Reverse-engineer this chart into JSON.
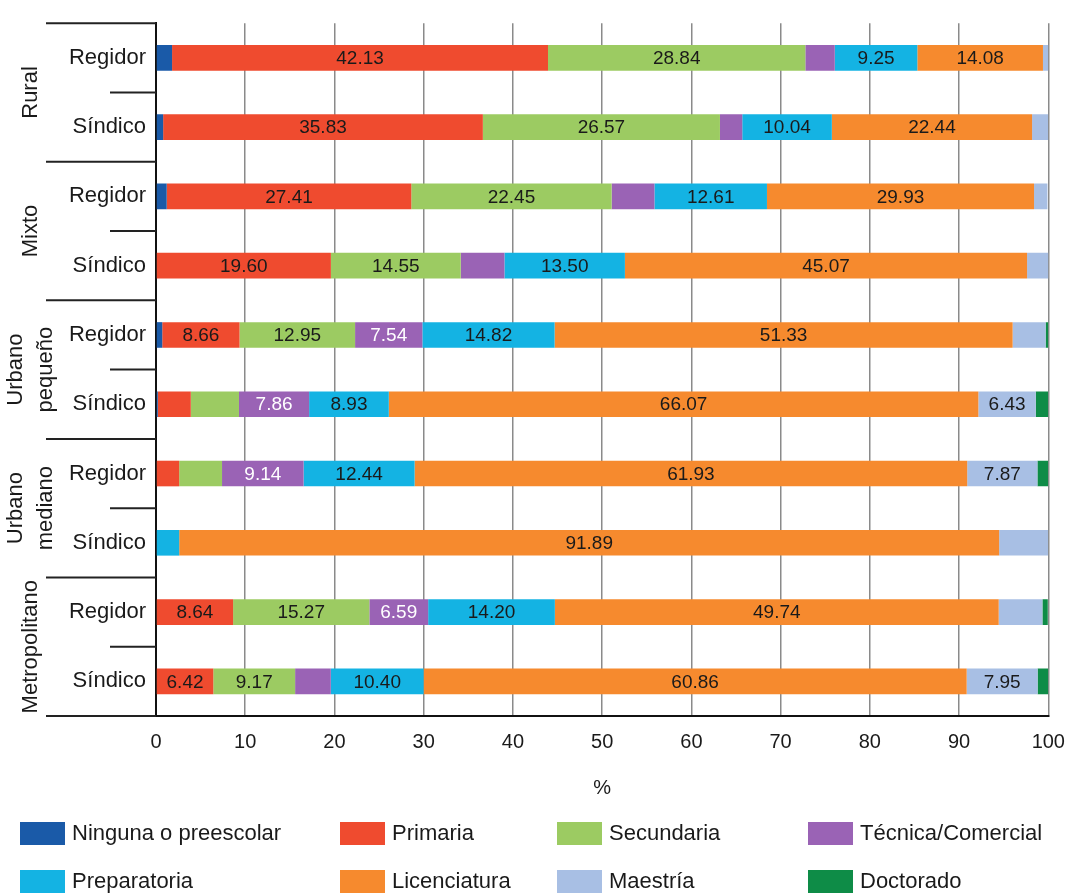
{
  "chart_data": {
    "type": "bar",
    "orientation": "horizontal",
    "stacked": true,
    "categories": [
      "Regidor",
      "Síndico",
      "Regidor",
      "Síndico",
      "Regidor",
      "Síndico",
      "Regidor",
      "Síndico",
      "Regidor",
      "Síndico"
    ],
    "annotations": [
      "Rural",
      "Mixto",
      "Urbano pequeño",
      "Urbano mediano",
      "Metropolitano"
    ],
    "xlabel": "%",
    "xlim": [
      0,
      100
    ],
    "xticks": [
      0,
      10,
      20,
      30,
      40,
      50,
      60,
      70,
      80,
      90,
      100
    ],
    "grid": "x",
    "legend": "bottom",
    "series": [
      {
        "name": "Ninguna o preescolar",
        "color": "#1a5aa8",
        "values": [
          1.8,
          0.8,
          1.2,
          null,
          0.7,
          0.2,
          null,
          null,
          null,
          null
        ]
      },
      {
        "name": "Primaria",
        "color": "#ef4b2f",
        "values": [
          42.13,
          35.83,
          27.41,
          19.6,
          8.66,
          3.7,
          2.6,
          null,
          8.64,
          6.42
        ],
        "value_labels": [
          "42.13",
          "35.83",
          "27.41",
          "19.60",
          "8.66",
          null,
          null,
          null,
          "8.64",
          "6.42"
        ]
      },
      {
        "name": "Secundaria",
        "color": "#9ccb62",
        "values": [
          28.84,
          26.57,
          22.45,
          14.55,
          12.95,
          5.4,
          4.8,
          null,
          15.27,
          9.17
        ],
        "value_labels": [
          "28.84",
          "26.57",
          "22.45",
          "14.55",
          "12.95",
          null,
          null,
          null,
          "15.27",
          "9.17"
        ]
      },
      {
        "name": "Técnica/Comercial",
        "color": "#9a63b5",
        "values": [
          3.3,
          2.5,
          4.8,
          4.9,
          7.54,
          7.86,
          9.14,
          null,
          6.59,
          4.0
        ],
        "value_labels": [
          null,
          null,
          null,
          null,
          "7.54",
          "7.86",
          "9.14",
          null,
          "6.59",
          null
        ]
      },
      {
        "name": "Preparatoria",
        "color": "#14b3e3",
        "values": [
          9.25,
          10.04,
          12.61,
          13.5,
          14.82,
          8.93,
          12.44,
          2.6,
          14.2,
          10.4
        ],
        "value_labels": [
          "9.25",
          "10.04",
          "12.61",
          "13.50",
          "14.82",
          "8.93",
          "12.44",
          null,
          "14.20",
          "10.40"
        ]
      },
      {
        "name": "Licenciatura",
        "color": "#f68a2e",
        "values": [
          14.08,
          22.44,
          29.93,
          45.07,
          51.33,
          66.07,
          61.93,
          91.89,
          49.74,
          60.86
        ],
        "value_labels": [
          "14.08",
          "22.44",
          "29.93",
          "45.07",
          "51.33",
          "66.07",
          "61.93",
          "91.89",
          "49.74",
          "60.86"
        ]
      },
      {
        "name": "Maestría",
        "color": "#a8bfe4",
        "values": [
          0.6,
          1.8,
          1.5,
          2.4,
          3.7,
          6.43,
          7.87,
          5.5,
          4.9,
          7.95
        ],
        "value_labels": [
          null,
          null,
          null,
          null,
          null,
          "6.43",
          "7.87",
          null,
          null,
          "7.95"
        ]
      },
      {
        "name": "Doctorado",
        "color": "#0e8c47",
        "values": [
          null,
          null,
          null,
          null,
          0.3,
          1.4,
          1.2,
          null,
          0.6,
          1.2
        ]
      }
    ]
  }
}
